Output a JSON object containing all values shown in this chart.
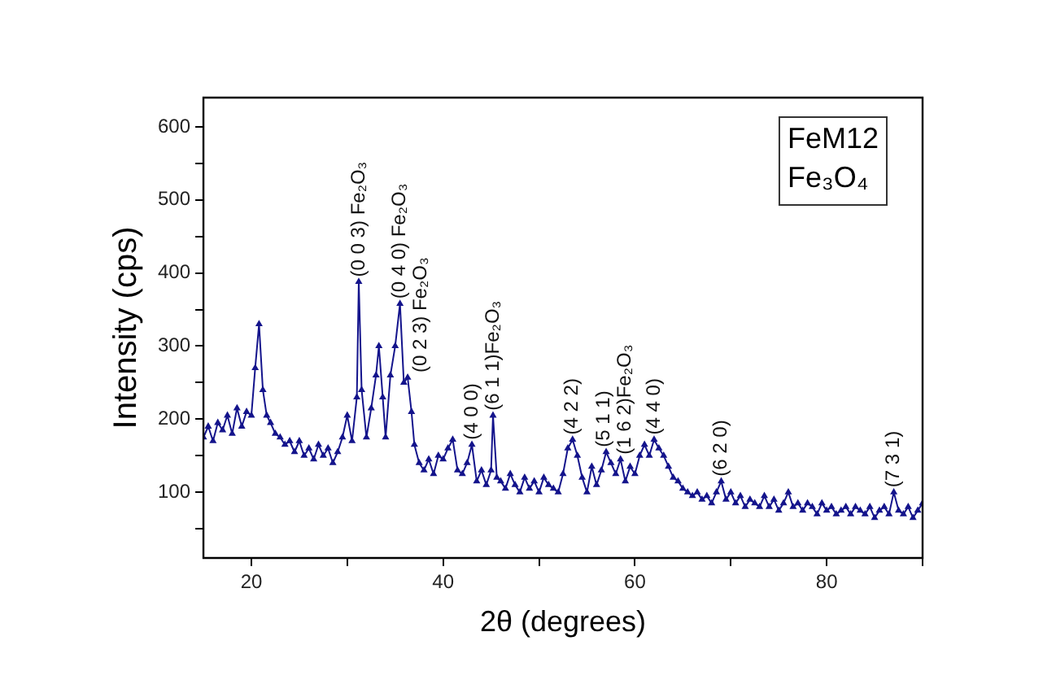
{
  "chart_data": {
    "type": "line",
    "xlabel": "2θ (degrees)",
    "ylabel": "Intensity (cps)",
    "xlim": [
      15,
      90
    ],
    "xticks": [
      20,
      {
        "value": 30,
        "label": null
      },
      40,
      {
        "value": 50,
        "label": null
      },
      60,
      {
        "value": 70,
        "label": null
      },
      80,
      {
        "value": 90,
        "label": null
      }
    ],
    "ylim": [
      10,
      640
    ],
    "yticks": [
      {
        "value": 50,
        "label": null
      },
      100,
      {
        "value": 150,
        "label": null
      },
      200,
      {
        "value": 250,
        "label": null
      },
      300,
      {
        "value": 350,
        "label": null
      },
      400,
      {
        "value": 450,
        "label": null
      },
      500,
      {
        "value": 550,
        "label": null
      },
      600
    ],
    "marker": "triangle",
    "line_style": "solid",
    "grid": false,
    "legend": false,
    "series": [
      {
        "color": "#14148c",
        "x": [
          15,
          15.5,
          16,
          16.5,
          17,
          17.5,
          18,
          18.5,
          19,
          19.5,
          20,
          20.4,
          20.8,
          21.2,
          21.6,
          22,
          22.5,
          23,
          23.5,
          24,
          24.5,
          25,
          25.5,
          26,
          26.5,
          27,
          27.5,
          28,
          28.5,
          29,
          29.5,
          30,
          30.5,
          31,
          31.2,
          31.5,
          32,
          32.5,
          33,
          33.3,
          33.7,
          34,
          34.5,
          35,
          35.5,
          35.9,
          36.3,
          36.7,
          37,
          37.5,
          38,
          38.5,
          39,
          39.5,
          40,
          40.5,
          41,
          41.5,
          42,
          42.5,
          43,
          43.5,
          44,
          44.5,
          45,
          45.2,
          45.6,
          46,
          46.5,
          47,
          47.5,
          48,
          48.5,
          49,
          49.5,
          50,
          50.5,
          51,
          51.5,
          52,
          52.5,
          53,
          53.5,
          54,
          54.5,
          55,
          55.5,
          56,
          56.5,
          57,
          57.5,
          58,
          58.5,
          59,
          59.5,
          60,
          60.5,
          61,
          61.5,
          62,
          62.5,
          63,
          63.5,
          64,
          64.5,
          65,
          65.5,
          66,
          66.5,
          67,
          67.5,
          68,
          68.5,
          69,
          69.5,
          70,
          70.5,
          71,
          71.5,
          72,
          72.5,
          73,
          73.5,
          74,
          74.5,
          75,
          75.5,
          76,
          76.5,
          77,
          77.5,
          78,
          78.5,
          79,
          79.5,
          80,
          80.5,
          81,
          81.5,
          82,
          82.5,
          83,
          83.5,
          84,
          84.5,
          85,
          85.5,
          86,
          86.5,
          87,
          87.5,
          88,
          88.5,
          89,
          89.5,
          90
        ],
        "values": [
          175,
          190,
          170,
          195,
          185,
          205,
          180,
          215,
          190,
          210,
          205,
          270,
          330,
          240,
          205,
          195,
          180,
          175,
          165,
          170,
          155,
          170,
          150,
          160,
          145,
          165,
          150,
          160,
          140,
          155,
          175,
          205,
          170,
          230,
          388,
          240,
          175,
          215,
          260,
          300,
          230,
          175,
          260,
          300,
          358,
          250,
          257,
          210,
          165,
          140,
          130,
          145,
          125,
          150,
          145,
          160,
          172,
          130,
          125,
          140,
          165,
          115,
          130,
          110,
          130,
          205,
          120,
          115,
          105,
          125,
          110,
          100,
          120,
          105,
          115,
          100,
          120,
          110,
          105,
          100,
          125,
          160,
          172,
          150,
          120,
          100,
          135,
          110,
          130,
          155,
          140,
          125,
          145,
          115,
          135,
          125,
          150,
          165,
          150,
          172,
          160,
          150,
          135,
          120,
          115,
          105,
          100,
          95,
          100,
          90,
          95,
          85,
          100,
          115,
          90,
          100,
          85,
          95,
          80,
          90,
          85,
          80,
          95,
          80,
          90,
          75,
          85,
          100,
          80,
          85,
          75,
          85,
          80,
          70,
          85,
          75,
          80,
          70,
          75,
          80,
          70,
          80,
          75,
          70,
          80,
          65,
          75,
          80,
          70,
          100,
          75,
          70,
          80,
          65,
          75,
          85
        ]
      }
    ],
    "annotations": [
      "FeM12",
      "Fe₃O₄",
      {
        "text": "(0 0 3) Fe₂O₃",
        "x": 31.2,
        "y": 388
      },
      {
        "text": "(0 4 0) Fe₂O₃",
        "x": 35.5,
        "y": 358
      },
      {
        "text": "(0 2 3) Fe₂O₃",
        "x": 36.3,
        "y": 257
      },
      {
        "text": "(4 0 0)",
        "x": 43,
        "y": 165
      },
      {
        "text": "(6 1 1)Fe₂O₃",
        "x": 45.2,
        "y": 205
      },
      {
        "text": "(4 2 2)",
        "x": 53.5,
        "y": 172
      },
      {
        "text": "(5 1 1)",
        "x": 56.8,
        "y": 155
      },
      {
        "text": "(1 6 2)Fe₂O₃",
        "x": 58.5,
        "y": 145
      },
      {
        "text": "(4 4 0)",
        "x": 62,
        "y": 172
      },
      {
        "text": "(6 2 0)",
        "x": 69,
        "y": 115
      },
      {
        "text": "(7 3 1)",
        "x": 87,
        "y": 100
      }
    ]
  }
}
